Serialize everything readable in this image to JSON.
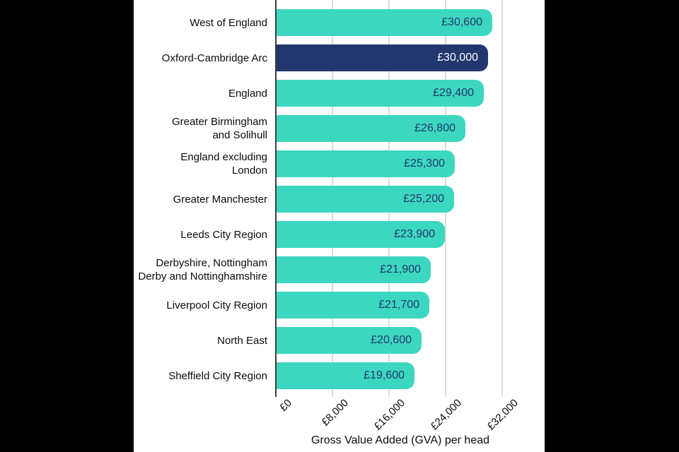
{
  "chart_data": {
    "type": "bar",
    "orientation": "horizontal",
    "title": "",
    "xlabel": "Gross Value Added (GVA) per head",
    "ylabel": "",
    "categories": [
      "West of England",
      "Oxford-Cambridge Arc",
      "England",
      "Greater Birmingham\nand Solihull",
      "England excluding\nLondon",
      "Greater Manchester",
      "Leeds City Region",
      "Derbyshire, Nottingham\nDerby and Nottinghamshire",
      "Liverpool City Region",
      "North East",
      "Sheffield City Region"
    ],
    "values": [
      30600,
      30000,
      29400,
      26800,
      25300,
      25200,
      23900,
      21900,
      21700,
      20600,
      19600
    ],
    "value_labels": [
      "£30,600",
      "£30,000",
      "£29,400",
      "£26,800",
      "£25,300",
      "£25,200",
      "£23,900",
      "£21,900",
      "£21,700",
      "£20,600",
      "£19,600"
    ],
    "highlight_index": 1,
    "xlim": [
      0,
      32000
    ],
    "xticks": [
      0,
      8000,
      16000,
      24000,
      32000
    ],
    "xtick_labels": [
      "£0",
      "£8,000",
      "£16,000",
      "£24,000",
      "£32,000"
    ],
    "grid": "vertical-only",
    "legend": "none",
    "colors": {
      "bar": "#3CD7BF",
      "highlight_bar": "#21376E",
      "value_text": "#21376E",
      "value_text_on_highlight": "#FFFFFF",
      "category_text": "#0B0C0C",
      "grid_line": "#DCDCDC",
      "axis_line": "#3D3D3D",
      "frame": "#000000",
      "background": "#FFFFFF"
    }
  }
}
